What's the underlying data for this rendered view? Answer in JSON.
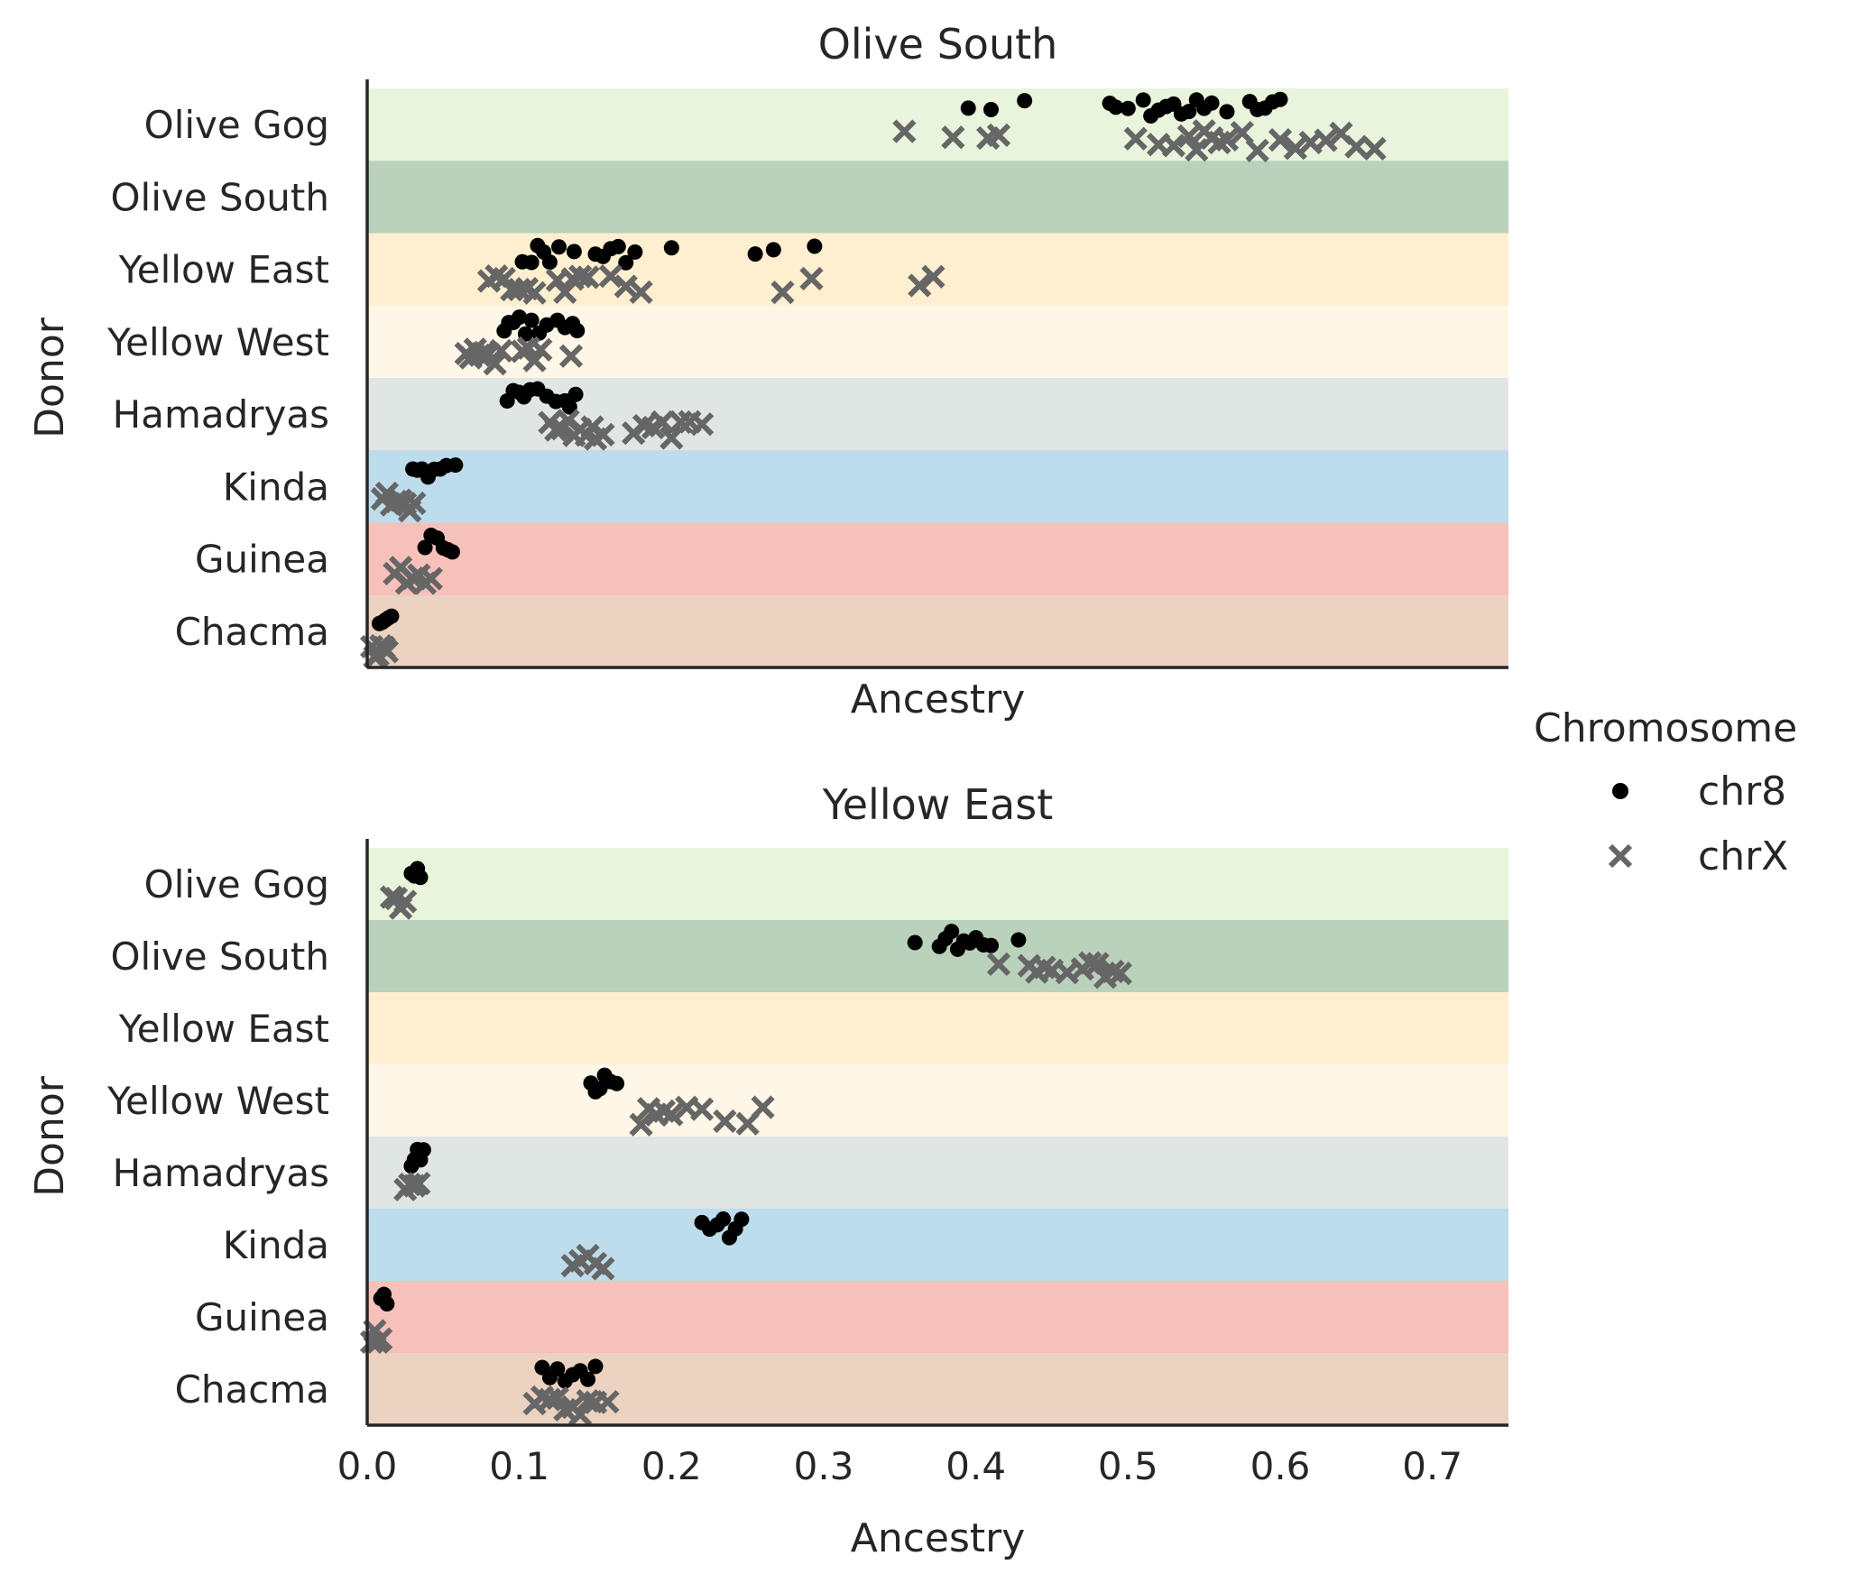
{
  "chart_data": [
    {
      "type": "scatter",
      "title": "Olive South",
      "xlabel": "Ancestry",
      "ylabel": "Donor",
      "xlim": [
        0,
        0.75
      ],
      "categories": [
        "Olive Gog",
        "Olive South",
        "Yellow East",
        "Yellow West",
        "Hamadryas",
        "Kinda",
        "Guinea",
        "Chacma"
      ],
      "band_colors": [
        "#e8f4dc",
        "#bad1bb",
        "#feefd0",
        "#fef6e6",
        "#e0e6e4",
        "#bddcec",
        "#f6c0bb",
        "#ebd2c1"
      ],
      "series": [
        {
          "name": "chr8",
          "color": "#000000",
          "marker": "dot",
          "points": [
            {
              "category": "Olive Gog",
              "x": [
                0.395,
                0.41,
                0.432,
                0.488,
                0.492,
                0.5,
                0.51,
                0.515,
                0.52,
                0.525,
                0.53,
                0.535,
                0.54,
                0.545,
                0.55,
                0.555,
                0.565,
                0.58,
                0.585,
                0.59,
                0.595,
                0.6
              ]
            },
            {
              "category": "Yellow East",
              "x": [
                0.102,
                0.108,
                0.112,
                0.116,
                0.12,
                0.126,
                0.136,
                0.15,
                0.155,
                0.16,
                0.165,
                0.17,
                0.176,
                0.2,
                0.255,
                0.267,
                0.294
              ]
            },
            {
              "category": "Yellow West",
              "x": [
                0.09,
                0.093,
                0.096,
                0.1,
                0.104,
                0.108,
                0.113,
                0.118,
                0.125,
                0.13,
                0.135,
                0.138
              ]
            },
            {
              "category": "Hamadryas",
              "x": [
                0.092,
                0.096,
                0.1,
                0.103,
                0.107,
                0.112,
                0.118,
                0.124,
                0.13,
                0.133,
                0.137
              ]
            },
            {
              "category": "Kinda",
              "x": [
                0.03,
                0.033,
                0.036,
                0.04,
                0.044,
                0.048,
                0.052,
                0.058
              ]
            },
            {
              "category": "Guinea",
              "x": [
                0.038,
                0.042,
                0.046,
                0.05,
                0.053,
                0.056
              ]
            },
            {
              "category": "Chacma",
              "x": [
                0.008,
                0.01,
                0.012,
                0.014,
                0.016
              ]
            }
          ]
        },
        {
          "name": "chrX",
          "color": "#666666",
          "marker": "x",
          "points": [
            {
              "category": "Olive Gog",
              "x": [
                0.353,
                0.385,
                0.408,
                0.415,
                0.505,
                0.52,
                0.53,
                0.54,
                0.545,
                0.55,
                0.555,
                0.56,
                0.565,
                0.575,
                0.585,
                0.6,
                0.61,
                0.62,
                0.63,
                0.64,
                0.65,
                0.662
              ]
            },
            {
              "category": "Yellow East",
              "x": [
                0.08,
                0.085,
                0.09,
                0.095,
                0.1,
                0.105,
                0.11,
                0.125,
                0.13,
                0.135,
                0.14,
                0.145,
                0.16,
                0.17,
                0.18,
                0.273,
                0.292,
                0.363,
                0.372
              ]
            },
            {
              "category": "Yellow West",
              "x": [
                0.065,
                0.068,
                0.071,
                0.074,
                0.077,
                0.08,
                0.084,
                0.088,
                0.102,
                0.106,
                0.11,
                0.114,
                0.134
              ]
            },
            {
              "category": "Hamadryas",
              "x": [
                0.12,
                0.124,
                0.128,
                0.132,
                0.136,
                0.14,
                0.144,
                0.148,
                0.15,
                0.155,
                0.175,
                0.182,
                0.188,
                0.194,
                0.2,
                0.206,
                0.212,
                0.22
              ]
            },
            {
              "category": "Kinda",
              "x": [
                0.01,
                0.013,
                0.016,
                0.019,
                0.022,
                0.025,
                0.028,
                0.031
              ]
            },
            {
              "category": "Guinea",
              "x": [
                0.018,
                0.022,
                0.026,
                0.03,
                0.034,
                0.038,
                0.042
              ]
            },
            {
              "category": "Chacma",
              "x": [
                0.003,
                0.005,
                0.007,
                0.009,
                0.011,
                0.013
              ]
            }
          ]
        }
      ]
    },
    {
      "type": "scatter",
      "title": "Yellow East",
      "xlabel": "Ancestry",
      "ylabel": "Donor",
      "xlim": [
        0,
        0.75
      ],
      "xticks": [
        "0.0",
        "0.1",
        "0.2",
        "0.3",
        "0.4",
        "0.5",
        "0.6",
        "0.7"
      ],
      "categories": [
        "Olive Gog",
        "Olive South",
        "Yellow East",
        "Yellow West",
        "Hamadryas",
        "Kinda",
        "Guinea",
        "Chacma"
      ],
      "band_colors": [
        "#e8f4dc",
        "#bad1bb",
        "#feefd0",
        "#fef6e6",
        "#e0e6e4",
        "#bddcec",
        "#f6c0bb",
        "#ebd2c1"
      ],
      "series": [
        {
          "name": "chr8",
          "color": "#000000",
          "marker": "dot",
          "points": [
            {
              "category": "Olive Gog",
              "x": [
                0.029,
                0.031,
                0.033,
                0.035
              ]
            },
            {
              "category": "Olive South",
              "x": [
                0.36,
                0.376,
                0.38,
                0.384,
                0.388,
                0.392,
                0.396,
                0.4,
                0.405,
                0.41,
                0.428
              ]
            },
            {
              "category": "Yellow West",
              "x": [
                0.147,
                0.15,
                0.153,
                0.156,
                0.16,
                0.164
              ]
            },
            {
              "category": "Hamadryas",
              "x": [
                0.029,
                0.031,
                0.033,
                0.035,
                0.037
              ]
            },
            {
              "category": "Kinda",
              "x": [
                0.22,
                0.225,
                0.23,
                0.234,
                0.238,
                0.242,
                0.246
              ]
            },
            {
              "category": "Guinea",
              "x": [
                0.009,
                0.011,
                0.013
              ]
            },
            {
              "category": "Chacma",
              "x": [
                0.115,
                0.12,
                0.125,
                0.13,
                0.135,
                0.14,
                0.145,
                0.15
              ]
            }
          ]
        },
        {
          "name": "chrX",
          "color": "#666666",
          "marker": "x",
          "points": [
            {
              "category": "Olive Gog",
              "x": [
                0.016,
                0.019,
                0.022,
                0.025
              ]
            },
            {
              "category": "Olive South",
              "x": [
                0.415,
                0.435,
                0.44,
                0.445,
                0.45,
                0.46,
                0.47,
                0.475,
                0.48,
                0.485,
                0.49,
                0.495
              ]
            },
            {
              "category": "Yellow West",
              "x": [
                0.18,
                0.185,
                0.19,
                0.195,
                0.2,
                0.21,
                0.22,
                0.235,
                0.25,
                0.26
              ]
            },
            {
              "category": "Hamadryas",
              "x": [
                0.025,
                0.028,
                0.031,
                0.034
              ]
            },
            {
              "category": "Kinda",
              "x": [
                0.135,
                0.14,
                0.145,
                0.15,
                0.155
              ]
            },
            {
              "category": "Guinea",
              "x": [
                0.003,
                0.005,
                0.007,
                0.009
              ]
            },
            {
              "category": "Chacma",
              "x": [
                0.11,
                0.115,
                0.12,
                0.125,
                0.13,
                0.135,
                0.14,
                0.145,
                0.15,
                0.158
              ]
            }
          ]
        }
      ]
    }
  ],
  "legend": {
    "title": "Chromosome",
    "items": [
      {
        "label": "chr8",
        "marker": "dot",
        "color": "#000000"
      },
      {
        "label": "chrX",
        "marker": "x",
        "color": "#666666"
      }
    ]
  }
}
